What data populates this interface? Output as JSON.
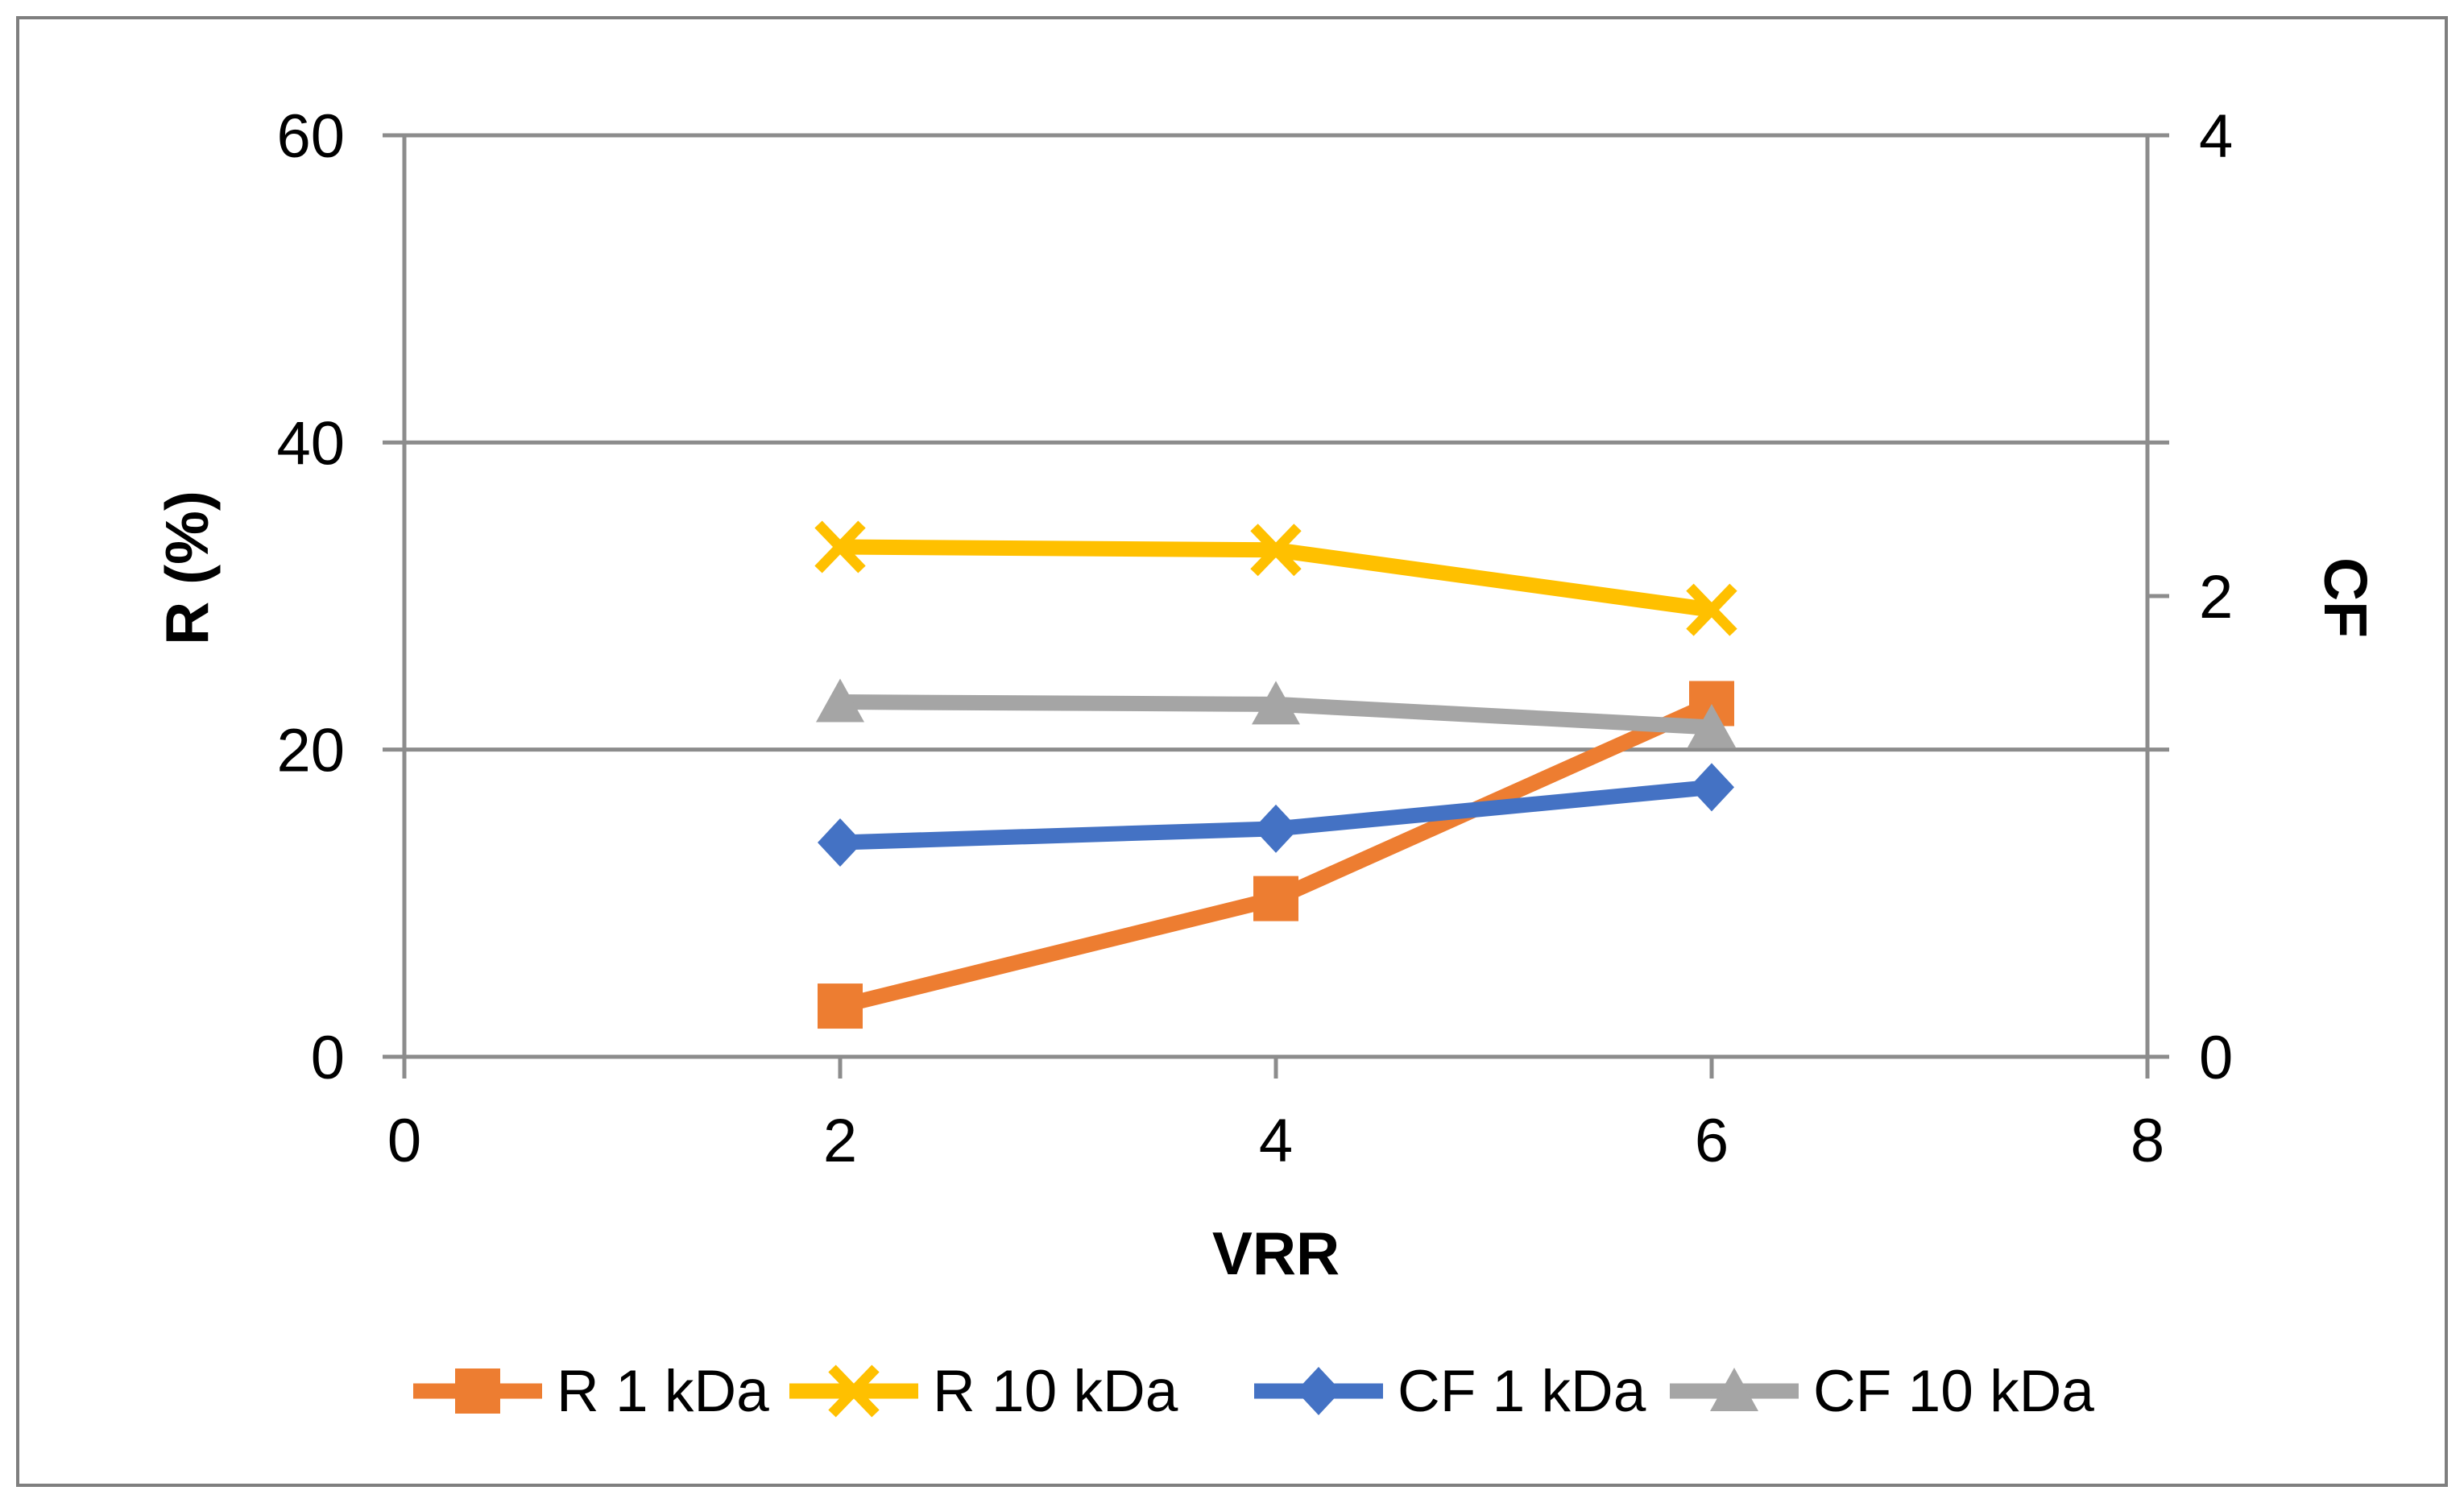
{
  "figure": {
    "border_color": "#7F7F7F",
    "background_color": "#FFFFFF",
    "axis_line_color": "#8C8C8C",
    "gridline_color": "#8C8C8C",
    "text_color": "#000000"
  },
  "chart_data": {
    "type": "line",
    "title": "",
    "xlabel": "VRR",
    "ylabel_left": "R (%)",
    "ylabel_right": "CF",
    "x": [
      2,
      4,
      6
    ],
    "xlim": [
      0,
      8
    ],
    "x_ticks": [
      0,
      2,
      4,
      6,
      8
    ],
    "ylim_left": [
      0,
      60
    ],
    "left_ticks": [
      0,
      20,
      40,
      60
    ],
    "ylim_right": [
      0,
      4
    ],
    "right_ticks": [
      0,
      2,
      4
    ],
    "grid": "horizontal gridlines at left-axis major unit 20",
    "legend_position": "bottom",
    "series": [
      {
        "name": "R 1 kDa",
        "axis": "left",
        "color": "#ED7D31",
        "marker": "square",
        "values": [
          3.3,
          10.3,
          23.0
        ]
      },
      {
        "name": "R 10 kDa",
        "axis": "left",
        "color": "#FFC000",
        "marker": "x",
        "values": [
          33.2,
          33.0,
          29.1
        ]
      },
      {
        "name": "CF 1 kDa",
        "axis": "right",
        "color": "#4472C4",
        "marker": "diamond",
        "values": [
          0.93,
          0.99,
          1.17
        ]
      },
      {
        "name": "CF 10 kDa",
        "axis": "right",
        "color": "#A5A5A5",
        "marker": "triangle",
        "values": [
          1.54,
          1.53,
          1.43
        ]
      }
    ]
  }
}
